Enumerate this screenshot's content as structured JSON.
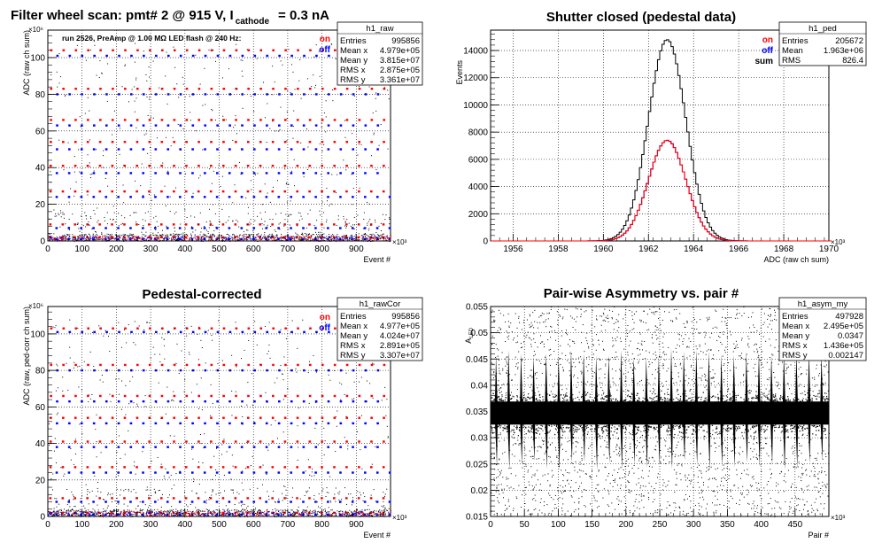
{
  "panels": {
    "raw": {
      "title_parts": [
        "Filter wheel scan: pmt#   2 @   915 V, I",
        "cathode",
        "= 0.3 nA"
      ],
      "note": "run 2526, PreAmp @ 1.00 MΩ   LED flash @  240 Hz:",
      "legend": [
        {
          "label": "on",
          "color": "#ff0000"
        },
        {
          "label": "off",
          "color": "#0000ff"
        }
      ],
      "stats": {
        "name": "h1_raw",
        "rows": [
          [
            "Entries",
            "995856"
          ],
          [
            "Mean x",
            "4.979e+05"
          ],
          [
            "Mean y",
            "3.815e+07"
          ],
          [
            "RMS x",
            "2.875e+05"
          ],
          [
            "RMS y",
            "3.361e+07"
          ]
        ]
      }
    },
    "ped": {
      "title": "Shutter closed (pedestal data)",
      "legend": [
        {
          "label": "on",
          "color": "#ff0000"
        },
        {
          "label": "off",
          "color": "#0000ff"
        },
        {
          "label": "sum",
          "color": "#000000"
        }
      ],
      "stats": {
        "name": "h1_ped",
        "rows": [
          [
            "Entries",
            "205672"
          ],
          [
            "Mean",
            "1.963e+06"
          ],
          [
            "RMS",
            "826.4"
          ]
        ]
      }
    },
    "cor": {
      "title": "Pedestal-corrected",
      "legend": [
        {
          "label": "on",
          "color": "#ff0000"
        },
        {
          "label": "off",
          "color": "#0000ff"
        }
      ],
      "stats": {
        "name": "h1_rawCor",
        "rows": [
          [
            "Entries",
            "995856"
          ],
          [
            "Mean x",
            "4.977e+05"
          ],
          [
            "Mean y",
            "4.024e+07"
          ],
          [
            "RMS x",
            "2.891e+05"
          ],
          [
            "RMS y",
            "3.307e+07"
          ]
        ]
      }
    },
    "asym": {
      "title": "Pair-wise Asymmetry vs. pair #",
      "stats": {
        "name": "h1_asym_my",
        "rows": [
          [
            "Entries",
            "497928"
          ],
          [
            "Mean x",
            "2.495e+05"
          ],
          [
            "Mean y",
            "0.0347"
          ],
          [
            "RMS x",
            "1.436e+05"
          ],
          [
            "RMS y",
            "0.002147"
          ]
        ]
      }
    }
  },
  "chart_data": [
    {
      "id": "raw",
      "type": "scatter",
      "title": "Filter wheel scan: pmt#   2 @   915 V, I_cathode = 0.3 nA",
      "xlabel": "Event #",
      "ylabel": "ADC (raw ch sum)",
      "x_exponent": "×10³",
      "y_exponent": "×10⁶",
      "xlim": [
        0,
        1000
      ],
      "ylim": [
        0,
        115
      ],
      "xticks": [
        0,
        100,
        200,
        300,
        400,
        500,
        600,
        700,
        800,
        900
      ],
      "yticks": [
        0,
        20,
        40,
        60,
        80,
        100
      ],
      "grid": true,
      "legend_position": "top-right",
      "series": [
        {
          "name": "on",
          "color": "#ff0000",
          "levels": [
            2,
            9,
            27,
            41,
            54,
            66,
            83,
            104
          ]
        },
        {
          "name": "off",
          "color": "#0000ff",
          "levels": [
            1,
            7,
            24,
            37,
            50,
            63,
            80,
            101
          ]
        }
      ],
      "step_period": 36
    },
    {
      "id": "ped",
      "type": "line",
      "title": "Shutter closed (pedestal data)",
      "xlabel": "ADC (raw ch sum)",
      "ylabel": "Events",
      "x_exponent": "×10³",
      "xlim": [
        1955,
        1970
      ],
      "ylim": [
        0,
        15500
      ],
      "xticks": [
        1956,
        1958,
        1960,
        1962,
        1964,
        1966,
        1968,
        1970
      ],
      "yticks": [
        0,
        2000,
        4000,
        6000,
        8000,
        10000,
        12000,
        14000
      ],
      "grid": true,
      "legend_position": "top-right",
      "series": [
        {
          "name": "sum",
          "color": "#000000",
          "mean": 1962.83,
          "sigma": 0.83,
          "peak": 14800
        },
        {
          "name": "on",
          "color": "#ff0000",
          "mean": 1962.83,
          "sigma": 0.83,
          "peak": 7400
        },
        {
          "name": "off",
          "color": "#0000ff",
          "mean": 1962.83,
          "sigma": 0.83,
          "peak": 7400
        }
      ]
    },
    {
      "id": "cor",
      "type": "scatter",
      "title": "Pedestal-corrected",
      "xlabel": "Event #",
      "ylabel": "ADC (raw, ped-corr ch sum)",
      "x_exponent": "×10³",
      "y_exponent": "×10⁶",
      "xlim": [
        0,
        1000
      ],
      "ylim": [
        0,
        115
      ],
      "xticks": [
        0,
        100,
        200,
        300,
        400,
        500,
        600,
        700,
        800,
        900
      ],
      "yticks": [
        0,
        20,
        40,
        60,
        80,
        100
      ],
      "grid": true,
      "legend_position": "top-right",
      "series": [
        {
          "name": "on",
          "color": "#ff0000",
          "levels": [
            2,
            10,
            27,
            41,
            54,
            66,
            83,
            103
          ]
        },
        {
          "name": "off",
          "color": "#0000ff",
          "levels": [
            1,
            8,
            24,
            38,
            51,
            63,
            80,
            101
          ]
        }
      ],
      "step_period": 36
    },
    {
      "id": "asym",
      "type": "scatter",
      "title": "Pair-wise Asymmetry vs. pair #",
      "xlabel": "Pair #",
      "ylabel": "A_LED",
      "x_exponent": "×10³",
      "xlim": [
        0,
        500
      ],
      "ylim": [
        0.015,
        0.055
      ],
      "xticks": [
        0,
        50,
        100,
        150,
        200,
        250,
        300,
        350,
        400,
        450
      ],
      "yticks": [
        0.015,
        0.02,
        0.025,
        0.03,
        0.035,
        0.04,
        0.045,
        0.05,
        0.055
      ],
      "grid": true,
      "band_center": 0.0347,
      "band_halfwidth": 0.0022,
      "spike_period": 18.5
    }
  ]
}
